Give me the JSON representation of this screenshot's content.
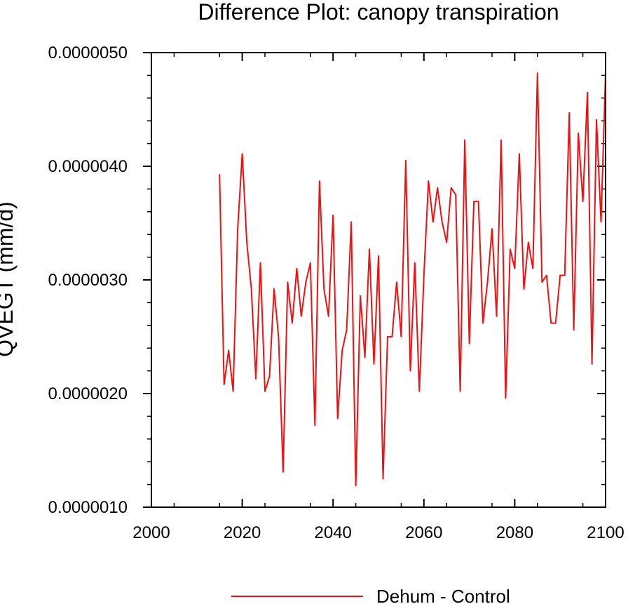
{
  "chart_data": {
    "type": "line",
    "title": "Difference Plot: canopy transpiration",
    "ylabel": "QVEGT  (mm/d)",
    "xlabel": "",
    "xlim": [
      2000,
      2100
    ],
    "ylim": [
      1e-06,
      5e-06
    ],
    "x_ticks": [
      2000,
      2020,
      2040,
      2060,
      2080,
      2100
    ],
    "x_tick_labels": [
      "2000",
      "2020",
      "2040",
      "2060",
      "2080",
      "2100"
    ],
    "y_ticks": [
      1e-06,
      2e-06,
      3e-06,
      4e-06,
      5e-06
    ],
    "y_tick_labels": [
      "0.0000010",
      "0.0000020",
      "0.0000030",
      "0.0000040",
      "0.0000050"
    ],
    "legend": "bottom-center",
    "grid": false,
    "series": [
      {
        "name": "Dehum - Control",
        "color": "#ee1111",
        "x": [
          2015,
          2016,
          2017,
          2018,
          2019,
          2020,
          2021,
          2022,
          2023,
          2024,
          2025,
          2026,
          2027,
          2028,
          2029,
          2030,
          2031,
          2032,
          2033,
          2034,
          2035,
          2036,
          2037,
          2038,
          2039,
          2040,
          2041,
          2042,
          2043,
          2044,
          2045,
          2046,
          2047,
          2048,
          2049,
          2050,
          2051,
          2052,
          2053,
          2054,
          2055,
          2056,
          2057,
          2058,
          2059,
          2060,
          2061,
          2062,
          2063,
          2064,
          2065,
          2066,
          2067,
          2068,
          2069,
          2070,
          2071,
          2072,
          2073,
          2074,
          2075,
          2076,
          2077,
          2078,
          2079,
          2080,
          2081,
          2082,
          2083,
          2084,
          2085,
          2086,
          2087,
          2088,
          2089,
          2090,
          2091,
          2092,
          2093,
          2094,
          2095,
          2096,
          2097,
          2098,
          2099,
          2100
        ],
        "values": [
          3.93e-06,
          2.08e-06,
          2.38e-06,
          2.02e-06,
          3.45e-06,
          4.11e-06,
          3.33e-06,
          2.92e-06,
          2.13e-06,
          3.15e-06,
          2.02e-06,
          2.15e-06,
          2.92e-06,
          2.5e-06,
          1.31e-06,
          2.98e-06,
          2.62e-06,
          3.1e-06,
          2.68e-06,
          2.98e-06,
          3.15e-06,
          1.72e-06,
          3.87e-06,
          2.92e-06,
          2.68e-06,
          3.57e-06,
          1.78e-06,
          2.38e-06,
          2.56e-06,
          3.51e-06,
          1.19e-06,
          2.86e-06,
          2.32e-06,
          3.27e-06,
          2.26e-06,
          3.21e-06,
          1.25e-06,
          2.5e-06,
          2.5e-06,
          2.98e-06,
          2.5e-06,
          4.05e-06,
          2.2e-06,
          3.15e-06,
          2.02e-06,
          3.04e-06,
          3.87e-06,
          3.51e-06,
          3.81e-06,
          3.51e-06,
          3.33e-06,
          3.81e-06,
          3.75e-06,
          2.02e-06,
          4.23e-06,
          2.44e-06,
          3.69e-06,
          3.69e-06,
          2.62e-06,
          2.98e-06,
          3.45e-06,
          2.68e-06,
          4.23e-06,
          1.96e-06,
          3.27e-06,
          3.1e-06,
          4.11e-06,
          2.92e-06,
          3.33e-06,
          3.1e-06,
          4.82e-06,
          2.98e-06,
          3.04e-06,
          2.62e-06,
          2.62e-06,
          3.04e-06,
          3.04e-06,
          4.47e-06,
          2.56e-06,
          4.29e-06,
          3.69e-06,
          4.65e-06,
          2.26e-06,
          4.41e-06,
          3.51e-06,
          4.82e-06
        ]
      }
    ]
  }
}
